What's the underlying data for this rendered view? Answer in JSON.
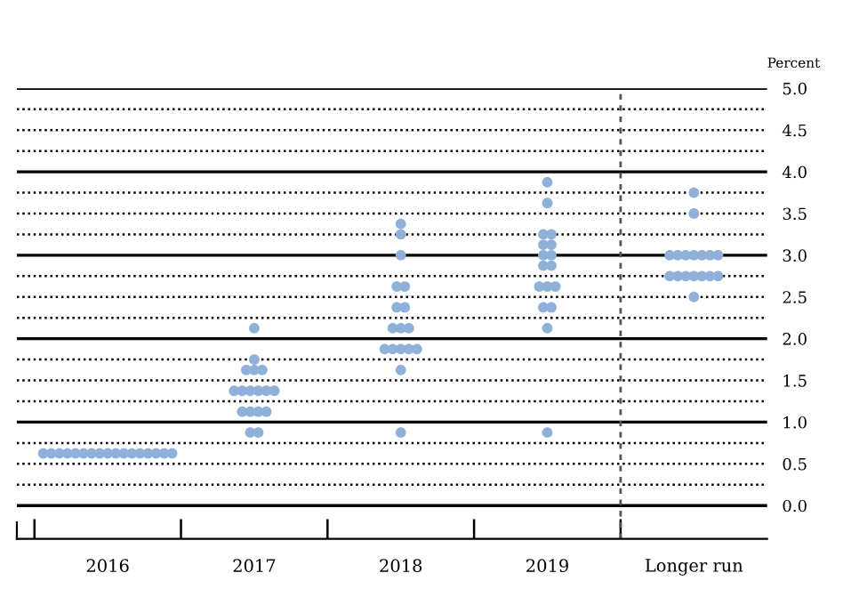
{
  "chart_data": {
    "type": "scatter",
    "ylabel": "Percent",
    "categories": [
      "2016",
      "2017",
      "2018",
      "2019",
      "Longer run"
    ],
    "series": [
      {
        "color": "#8fb0d8",
        "values": [
          0.625,
          2.125,
          3.375,
          3.875,
          3.75
        ]
      },
      {
        "color": "#8fb0d8",
        "values": [
          0.625,
          1.75,
          3.25,
          3.625,
          3.5
        ]
      },
      {
        "color": "#8fb0d8",
        "values": [
          0.625,
          1.625,
          3.0,
          3.25,
          3.0
        ]
      },
      {
        "color": "#8fb0d8",
        "values": [
          0.625,
          1.625,
          2.625,
          3.25,
          3.0
        ]
      },
      {
        "color": "#8fb0d8",
        "values": [
          0.625,
          1.625,
          2.625,
          3.125,
          3.0
        ]
      },
      {
        "color": "#8fb0d8",
        "values": [
          0.625,
          1.375,
          2.375,
          3.125,
          3.0
        ]
      },
      {
        "color": "#8fb0d8",
        "values": [
          0.625,
          1.375,
          2.375,
          3.0,
          3.0
        ]
      },
      {
        "color": "#8fb0d8",
        "values": [
          0.625,
          1.375,
          2.125,
          3.0,
          3.0
        ]
      },
      {
        "color": "#8fb0d8",
        "values": [
          0.625,
          1.375,
          2.125,
          2.875,
          3.0
        ]
      },
      {
        "color": "#8fb0d8",
        "values": [
          0.625,
          1.375,
          2.125,
          2.875,
          2.75
        ]
      },
      {
        "color": "#8fb0d8",
        "values": [
          0.625,
          1.375,
          1.875,
          2.625,
          2.75
        ]
      },
      {
        "color": "#8fb0d8",
        "values": [
          0.625,
          1.125,
          1.875,
          2.625,
          2.75
        ]
      },
      {
        "color": "#8fb0d8",
        "values": [
          0.625,
          1.125,
          1.875,
          2.625,
          2.75
        ]
      },
      {
        "color": "#8fb0d8",
        "values": [
          0.625,
          1.125,
          1.875,
          2.375,
          2.75
        ]
      },
      {
        "color": "#8fb0d8",
        "values": [
          0.625,
          1.125,
          1.875,
          2.375,
          2.75
        ]
      },
      {
        "color": "#8fb0d8",
        "values": [
          0.625,
          0.875,
          1.625,
          2.125,
          2.75
        ]
      },
      {
        "color": "#8fb0d8",
        "values": [
          0.625,
          0.875,
          0.875,
          0.875,
          2.5
        ]
      }
    ],
    "marker": "circle",
    "ylim": [
      -0.4,
      5.0
    ],
    "yticks": [
      {
        "value": 0,
        "label": "0.0"
      },
      {
        "value": 0.25,
        "label": null
      },
      0.5,
      {
        "value": 0.75,
        "label": null
      },
      {
        "value": 1,
        "label": "1.0"
      },
      {
        "value": 1.25,
        "label": null
      },
      1.5,
      {
        "value": 1.75,
        "label": null
      },
      {
        "value": 2,
        "label": "2.0"
      },
      {
        "value": 2.25,
        "label": null
      },
      2.5,
      {
        "value": 2.75,
        "label": null
      },
      {
        "value": 3,
        "label": "3.0"
      },
      {
        "value": 3.25,
        "label": null
      },
      3.5,
      {
        "value": 3.75,
        "label": null
      },
      {
        "value": 4,
        "label": "4.0"
      },
      {
        "value": 4.25,
        "label": null
      },
      4.5,
      {
        "value": 4.75,
        "label": null
      },
      {
        "value": 5,
        "label": "5.0"
      }
    ],
    "grid": "y"
  }
}
